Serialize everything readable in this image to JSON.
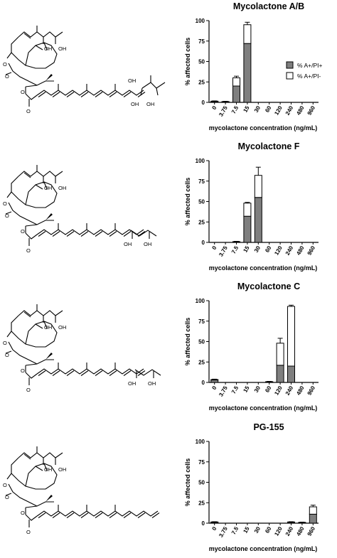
{
  "legend": {
    "items": [
      "% A+/PI+",
      "% A+/PI-"
    ],
    "colors": [
      "#7f7f7f",
      "#ffffff"
    ]
  },
  "chart_data": [
    {
      "type": "bar",
      "stacked": true,
      "title": "Mycolactone A/B",
      "xlabel": "mycolactone concentration (ng/mL)",
      "ylabel": "% affected cells",
      "ylim": [
        0,
        100
      ],
      "yticks": [
        0,
        25,
        50,
        75,
        100
      ],
      "categories": [
        "0",
        "3.75",
        "7.5",
        "15",
        "30",
        "60",
        "120",
        "240",
        "480",
        "960"
      ],
      "series": [
        {
          "name": "% A+/PI+",
          "color": "#7f7f7f",
          "values": [
            1,
            0.5,
            20,
            72,
            0,
            0,
            0,
            0,
            0,
            0
          ],
          "err": [
            0.4,
            0.3,
            3,
            1.5,
            0,
            0,
            0,
            0,
            0,
            0
          ]
        },
        {
          "name": "% A+/PI-",
          "color": "#ffffff",
          "values": [
            0.5,
            0.5,
            10,
            23,
            0,
            0,
            0,
            0,
            0,
            0
          ],
          "err": [
            0.3,
            0.3,
            2,
            3,
            0,
            0,
            0,
            0,
            0,
            0
          ]
        }
      ],
      "show_legend": true,
      "legend_position": "right"
    },
    {
      "type": "bar",
      "stacked": true,
      "title": "Mycolactone F",
      "xlabel": "mycolactone concentration (ng/mL)",
      "ylabel": "% affected cells",
      "ylim": [
        0,
        100
      ],
      "yticks": [
        0,
        25,
        50,
        75,
        100
      ],
      "categories": [
        "0",
        "3.75",
        "7.5",
        "15",
        "30",
        "60",
        "120",
        "240",
        "480",
        "960"
      ],
      "series": [
        {
          "name": "% A+/PI+",
          "color": "#7f7f7f",
          "values": [
            0,
            0,
            0.5,
            32,
            55,
            0,
            0,
            0,
            0,
            0
          ],
          "err": [
            0,
            0,
            0.3,
            3,
            5,
            0,
            0,
            0,
            0,
            0
          ]
        },
        {
          "name": "% A+/PI-",
          "color": "#ffffff",
          "values": [
            0,
            0,
            0.5,
            16,
            27,
            0,
            0,
            0,
            0,
            0
          ],
          "err": [
            0,
            0,
            0.3,
            1,
            10,
            0,
            0,
            0,
            0,
            0
          ]
        }
      ],
      "show_legend": false
    },
    {
      "type": "bar",
      "stacked": true,
      "title": "Mycolactone C",
      "xlabel": "mycolactone concentration (ng/mL)",
      "ylabel": "% affected cells",
      "ylim": [
        0,
        100
      ],
      "yticks": [
        0,
        25,
        50,
        75,
        100
      ],
      "categories": [
        "0",
        "3.75",
        "7.5",
        "15",
        "30",
        "60",
        "120",
        "240",
        "480",
        "960"
      ],
      "series": [
        {
          "name": "% A+/PI+",
          "color": "#7f7f7f",
          "values": [
            3,
            0,
            0,
            0,
            0,
            0.5,
            21,
            20,
            0,
            0
          ],
          "err": [
            1,
            0,
            0,
            0,
            0,
            0.3,
            2,
            1.5,
            0,
            0
          ]
        },
        {
          "name": "% A+/PI-",
          "color": "#ffffff",
          "values": [
            0.5,
            0,
            0,
            0,
            0,
            0.5,
            27,
            73,
            0,
            0
          ],
          "err": [
            0.3,
            0,
            0,
            0,
            0,
            0.3,
            6,
            1.5,
            0,
            0
          ]
        }
      ],
      "show_legend": false
    },
    {
      "type": "bar",
      "stacked": true,
      "title": "PG-155",
      "xlabel": "mycolactone concentration (ng/mL)",
      "ylabel": "% affected cells",
      "ylim": [
        0,
        100
      ],
      "yticks": [
        0,
        25,
        50,
        75,
        100
      ],
      "categories": [
        "0",
        "3.75",
        "7.5",
        "15",
        "30",
        "60",
        "120",
        "240",
        "480",
        "960"
      ],
      "series": [
        {
          "name": "% A+/PI+",
          "color": "#7f7f7f",
          "values": [
            1,
            0,
            0,
            0,
            0,
            0,
            0,
            1,
            0.5,
            11
          ],
          "err": [
            0.4,
            0,
            0,
            0,
            0,
            0,
            0,
            0.4,
            0.3,
            1.5
          ]
        },
        {
          "name": "% A+/PI-",
          "color": "#ffffff",
          "values": [
            0.5,
            0,
            0,
            0,
            0,
            0,
            0,
            0.5,
            0.5,
            9
          ],
          "err": [
            0.3,
            0,
            0,
            0,
            0,
            0,
            0,
            0.3,
            0.3,
            2
          ]
        }
      ],
      "show_legend": false
    }
  ],
  "molecules": [
    {
      "name": "mycolactone-a-b-structure",
      "labels": [
        "OH",
        "OH",
        "O",
        "O",
        "O",
        "O",
        "OH",
        "OH",
        "OH"
      ],
      "tail": "ab"
    },
    {
      "name": "mycolactone-f-structure",
      "labels": [
        "OH",
        "OH",
        "O",
        "O",
        "O",
        "O",
        "OH",
        "OH"
      ],
      "tail": "f"
    },
    {
      "name": "mycolactone-c-structure",
      "labels": [
        "OH",
        "OH",
        "O",
        "O",
        "O",
        "O",
        "OH",
        "OH"
      ],
      "tail": "c"
    },
    {
      "name": "pg-155-structure",
      "labels": [
        "OH",
        "OH",
        "O",
        "O",
        "O",
        "O"
      ],
      "tail": "pg"
    }
  ]
}
